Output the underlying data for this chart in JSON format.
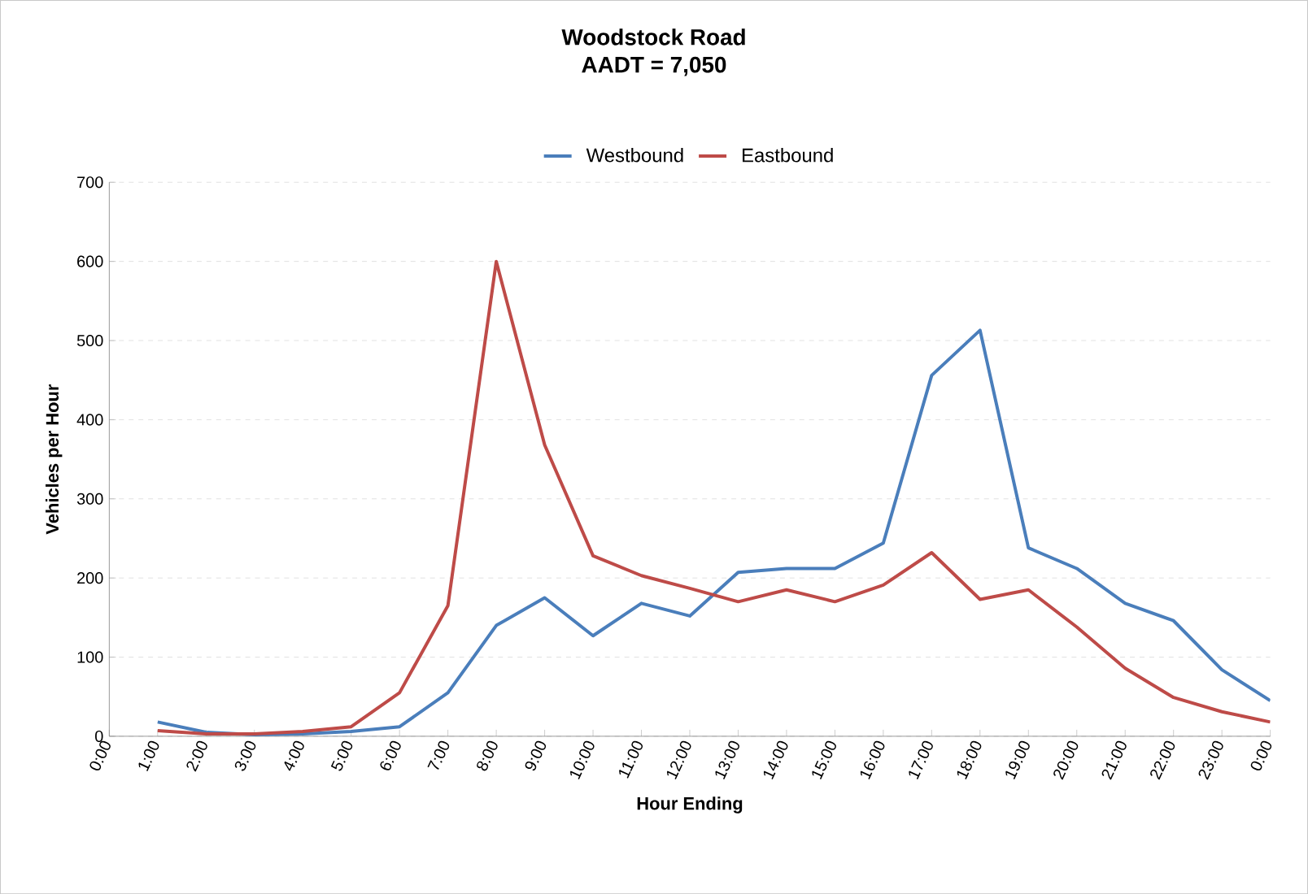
{
  "chart_data": {
    "type": "line",
    "title": "Woodstock Road",
    "subtitle": "AADT = 7,050",
    "xlabel": "Hour Ending",
    "ylabel": "Vehicles per Hour",
    "categories": [
      "0:00",
      "1:00",
      "2:00",
      "3:00",
      "4:00",
      "5:00",
      "6:00",
      "7:00",
      "8:00",
      "9:00",
      "10:00",
      "11:00",
      "12:00",
      "13:00",
      "14:00",
      "15:00",
      "16:00",
      "17:00",
      "18:00",
      "19:00",
      "20:00",
      "21:00",
      "22:00",
      "23:00",
      "0:00"
    ],
    "series": [
      {
        "name": "Westbound",
        "color": "#4a7ebb",
        "values": [
          null,
          18,
          5,
          2,
          3,
          6,
          12,
          55,
          140,
          175,
          127,
          168,
          152,
          207,
          212,
          212,
          244,
          456,
          513,
          238,
          212,
          168,
          146,
          84,
          45
        ]
      },
      {
        "name": "Eastbound",
        "color": "#be4b48",
        "values": [
          null,
          7,
          3,
          3,
          6,
          12,
          55,
          165,
          600,
          368,
          228,
          203,
          187,
          170,
          185,
          170,
          191,
          232,
          173,
          185,
          138,
          86,
          49,
          31,
          18
        ]
      }
    ],
    "ylim": [
      0,
      700
    ],
    "yticks": [
      0,
      100,
      200,
      300,
      400,
      500,
      600,
      700
    ],
    "grid": "y",
    "legend": "top",
    "marker": "none",
    "line_style": "solid"
  }
}
